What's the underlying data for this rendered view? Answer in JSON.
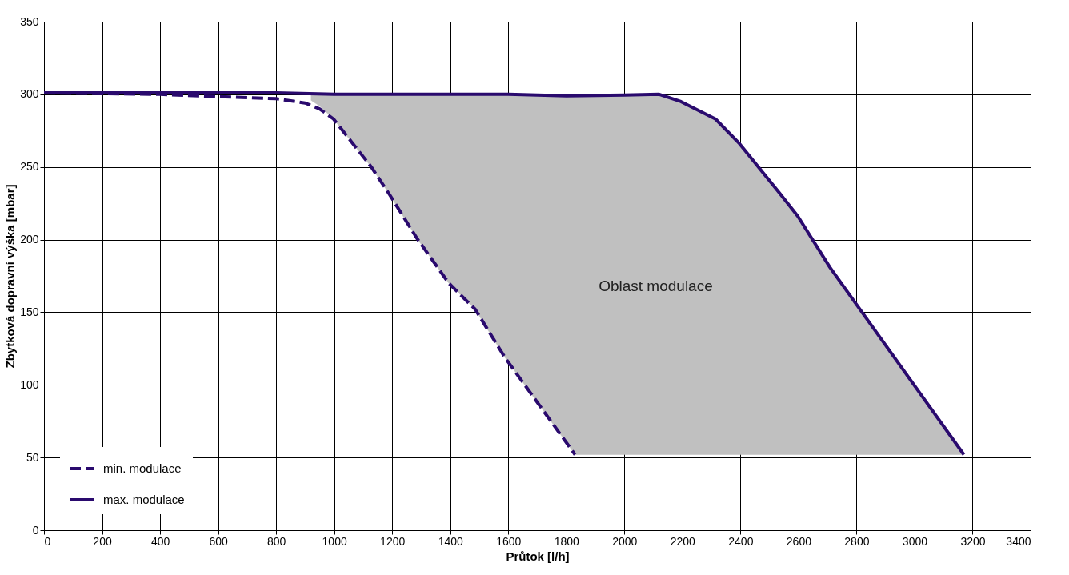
{
  "chart_data": {
    "type": "line",
    "xlabel": "Průtok  [l/h]",
    "ylabel": "Zbytková  dopravní  výška  [mbar]",
    "xlim": [
      0,
      3400
    ],
    "xticks": [
      0,
      200,
      400,
      600,
      800,
      1000,
      1200,
      1400,
      1600,
      1800,
      2000,
      2200,
      2400,
      2600,
      2800,
      3000,
      3200,
      3400
    ],
    "ylim": [
      0,
      350
    ],
    "yticks": [
      0,
      50,
      100,
      150,
      200,
      250,
      300,
      350
    ],
    "grid": true,
    "legend": "bottom left",
    "series": [
      {
        "type": "area",
        "color": "#c0c0c0",
        "x": [
          920,
          950,
          998,
          1128,
          1191,
          1285,
          1395,
          1486,
          1588,
          1830,
          3170,
          2708,
          2598,
          2535,
          2397,
          2314,
          2195,
          2120,
          2000,
          1800,
          1600,
          1400,
          1200,
          920
        ],
        "values": [
          296,
          292,
          283,
          250,
          231,
          201,
          170,
          152,
          119,
          52,
          52,
          181,
          216,
          232,
          266,
          283,
          295,
          300,
          299.5,
          299,
          300,
          300,
          300,
          301
        ]
      },
      {
        "name": "min. modulace",
        "color": "#2a0a6e",
        "line_style": "dashed",
        "x": [
          0,
          400,
          800,
          900,
          950,
          998,
          1128,
          1191,
          1285,
          1395,
          1486,
          1588,
          1830
        ],
        "values": [
          301,
          300,
          297,
          294,
          290,
          283,
          250,
          231,
          201,
          170,
          152,
          119,
          52
        ]
      },
      {
        "name": "max. modulace",
        "color": "#2a0a6e",
        "line_style": "solid",
        "x": [
          0,
          400,
          800,
          1000,
          1200,
          1400,
          1600,
          1800,
          2000,
          2120,
          2195,
          2314,
          2397,
          2535,
          2598,
          2708,
          3170
        ],
        "values": [
          301,
          301,
          301,
          300,
          300,
          300,
          300,
          299,
          299.5,
          300,
          295,
          283,
          266,
          232,
          216,
          181,
          52
        ]
      }
    ],
    "annotations": [
      "Oblast  modulace"
    ]
  }
}
